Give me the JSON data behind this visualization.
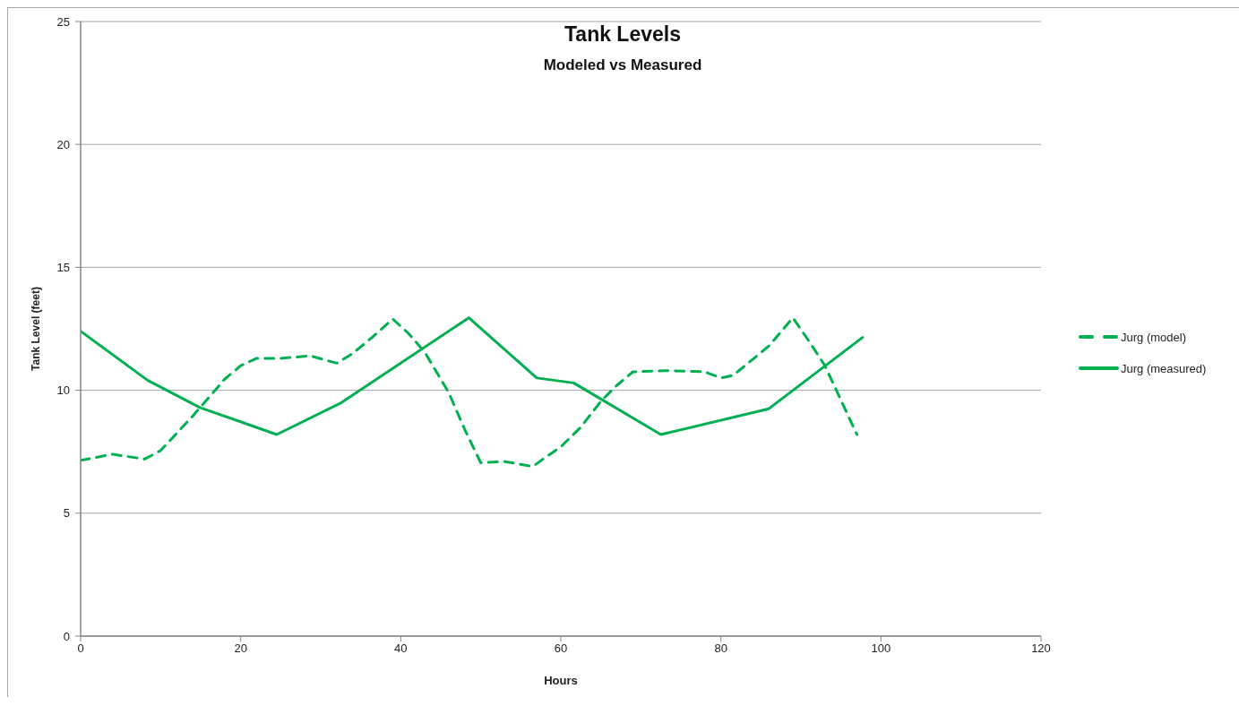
{
  "chart_data": {
    "type": "line",
    "title": "Tank Levels",
    "subtitle": "Modeled vs Measured",
    "xlabel": "Hours",
    "ylabel": "Tank Level (feet)",
    "xlim": [
      0,
      120
    ],
    "xticks": [
      0,
      20,
      40,
      60,
      80,
      100,
      120
    ],
    "ylim": [
      0,
      25
    ],
    "yticks": [
      0,
      5,
      10,
      15,
      20,
      25
    ],
    "grid": "y",
    "legend": "right",
    "marker": "none",
    "series": [
      {
        "name": "Jurg (model)",
        "color": "#00b050",
        "line_style": "dashed",
        "x": [
          0,
          4,
          8,
          10,
          12,
          14,
          16,
          18,
          20,
          22,
          25,
          28.7,
          32,
          34,
          36.6,
          39,
          41,
          43,
          46,
          48,
          50,
          53,
          56.5,
          58,
          60,
          62.5,
          65,
          67,
          69,
          73,
          78,
          80,
          81.5,
          83.2,
          86,
          89,
          91,
          93,
          95,
          97
        ],
        "values": [
          7.15,
          7.4,
          7.2,
          7.55,
          8.25,
          8.95,
          9.7,
          10.45,
          11.0,
          11.3,
          11.3,
          11.4,
          11.1,
          11.5,
          12.2,
          12.9,
          12.3,
          11.55,
          9.9,
          8.4,
          7.05,
          7.1,
          6.9,
          7.25,
          7.7,
          8.5,
          9.55,
          10.2,
          10.75,
          10.8,
          10.75,
          10.5,
          10.6,
          11.05,
          11.8,
          12.95,
          12.0,
          11.0,
          9.6,
          8.2
        ]
      },
      {
        "name": "Jurg (measured)",
        "color": "#00b050",
        "line_style": "solid",
        "x": [
          0,
          8.4,
          14.9,
          24.5,
          32.6,
          48.5,
          57,
          61.6,
          72.5,
          86,
          97.7
        ],
        "values": [
          12.4,
          10.4,
          9.3,
          8.2,
          9.5,
          12.95,
          10.5,
          10.3,
          8.2,
          9.25,
          12.15
        ]
      }
    ]
  }
}
